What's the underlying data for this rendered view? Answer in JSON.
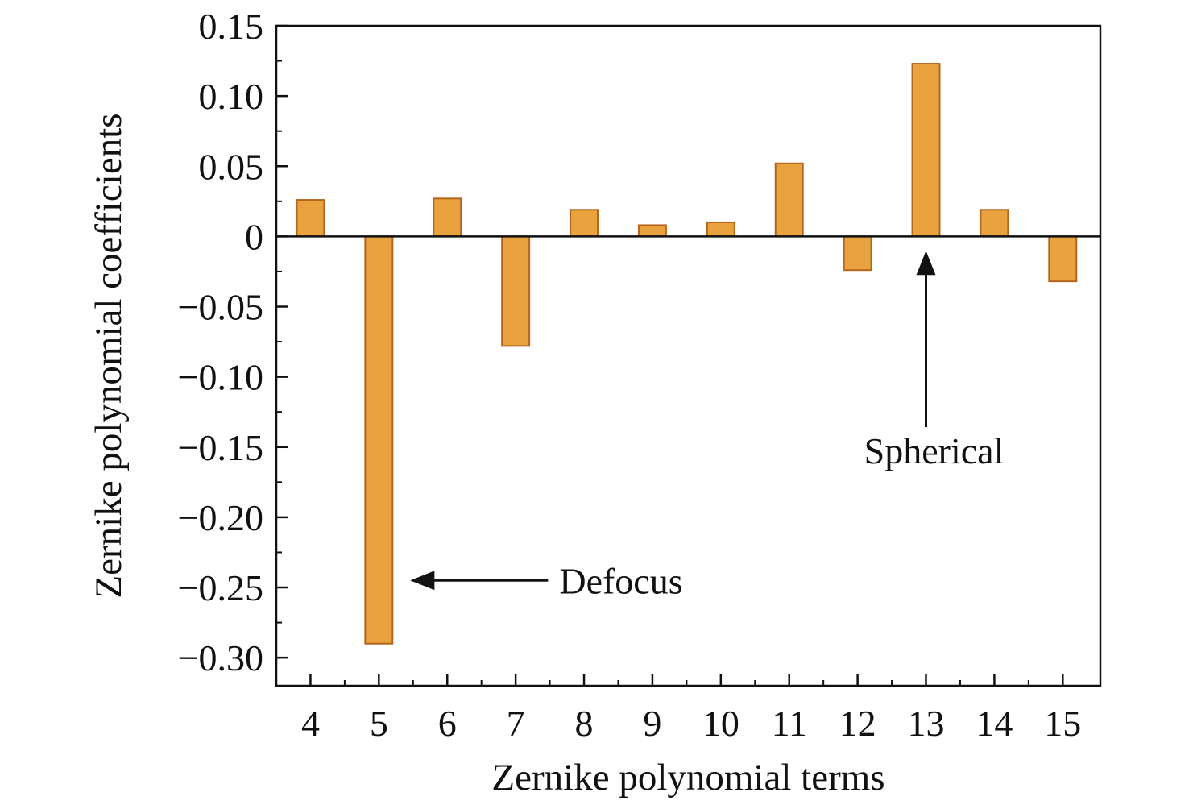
{
  "chart_data": {
    "type": "bar",
    "categories": [
      "4",
      "5",
      "6",
      "7",
      "8",
      "9",
      "10",
      "11",
      "12",
      "13",
      "14",
      "15"
    ],
    "values": [
      0.026,
      -0.29,
      0.027,
      -0.078,
      0.019,
      0.008,
      0.01,
      0.052,
      -0.024,
      0.123,
      0.019,
      -0.032
    ],
    "title": "",
    "xlabel": "Zernike polynomial terms",
    "ylabel": "Zernike polynomial coefficients",
    "ylim": [
      -0.32,
      0.15
    ],
    "y_ticks": [
      {
        "value": 0.15,
        "label": "0.15"
      },
      {
        "value": 0.1,
        "label": "0.10"
      },
      {
        "value": 0.05,
        "label": "0.05"
      },
      {
        "value": 0,
        "label": "0"
      },
      {
        "value": -0.05,
        "label": "−0.05"
      },
      {
        "value": -0.1,
        "label": "−0.10"
      },
      {
        "value": -0.15,
        "label": "−0.15"
      },
      {
        "value": -0.2,
        "label": "−0.20"
      },
      {
        "value": -0.25,
        "label": "−0.25"
      },
      {
        "value": -0.3,
        "label": "−0.30"
      }
    ],
    "bar_color": "#E8A23E",
    "bar_edge_color": "#B5651D",
    "grid": false,
    "annotations": [
      {
        "text": "Defocus",
        "points_to": "5",
        "at_value": -0.245
      },
      {
        "text": "Spherical",
        "points_to": "13",
        "at_value": -0.012
      }
    ]
  }
}
